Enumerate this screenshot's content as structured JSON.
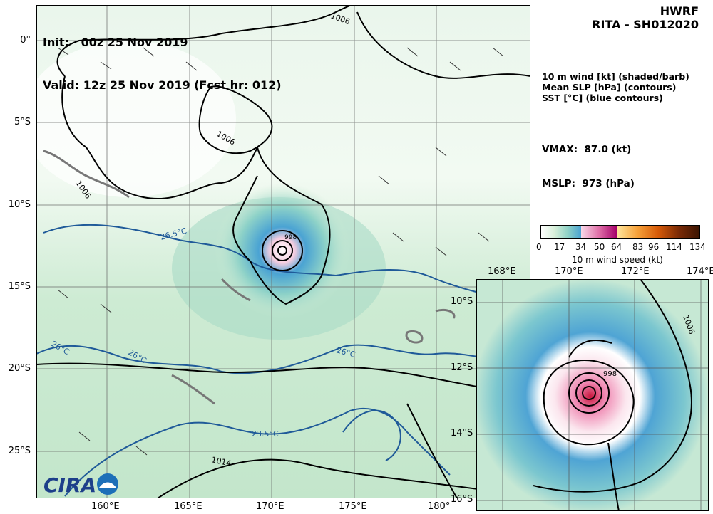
{
  "header": {
    "init_line": "Init:   00z 25 Nov 2019",
    "valid_line": "Valid: 12z 25 Nov 2019 (Fcst hr: 012)",
    "model": "HWRF",
    "storm": "RITA - SH012020"
  },
  "legend": {
    "line1": "10 m wind [kt] (shaded/barb)",
    "line2": "Mean SLP [hPa] (contours)",
    "line3": "SST [°C] (blue contours)",
    "vmax": "VMAX:  87.0 (kt)",
    "mslp": "MSLP:  973 (hPa)"
  },
  "main_map": {
    "lat_labels": [
      "0°",
      "5°S",
      "10°S",
      "15°S",
      "20°S",
      "25°S"
    ],
    "lon_labels": [
      "160°E",
      "165°E",
      "170°E",
      "175°E",
      "180°"
    ],
    "contour_labels": [
      "1006",
      "1006",
      "1006",
      "998",
      "1014"
    ],
    "sst_labels": [
      "26.5°C",
      "26°C",
      "26°C",
      "26°C",
      "23.5°C"
    ],
    "logo_text": "CIRA",
    "colors": {
      "land": "#7a7a7a",
      "slp": "#000000",
      "sst": "#1f5a99",
      "grid": "#555555"
    }
  },
  "inset_map": {
    "lat_labels": [
      "10°S",
      "12°S",
      "14°S",
      "16°S"
    ],
    "lon_labels_top": [
      "168°E",
      "170°E",
      "172°E",
      "174°E"
    ],
    "contour_labels": [
      "1006",
      "998"
    ]
  },
  "colorbar": {
    "ticks": [
      "0",
      "17",
      "34",
      "50",
      "64",
      "83",
      "96",
      "114",
      "134"
    ],
    "label": "10 m wind speed (kt)"
  }
}
